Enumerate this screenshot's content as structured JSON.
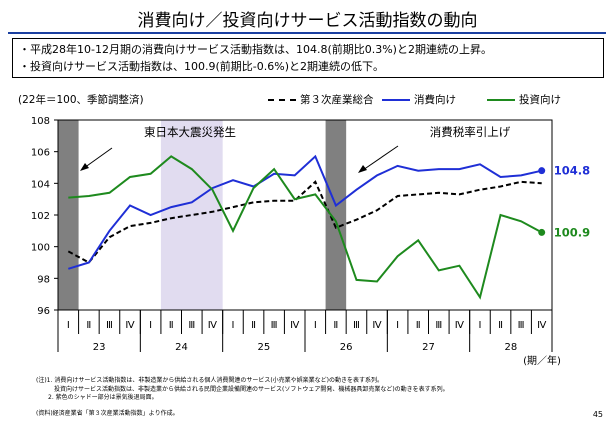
{
  "title": "消費向け／投資向けサービス活動指数の動向",
  "summary": [
    "・平成28年10-12月期の消費向けサービス活動指数は、104.8(前期比0.3%)と2期連続の上昇。",
    "・投資向けサービス活動指数は、100.9(前期比-0.6%)と2期連続の低下。"
  ],
  "units_label": "(22年＝100、季節調整済)",
  "annotations": {
    "quake": "東日本大震災発生",
    "tax": "消費税率引上げ"
  },
  "notes": [
    "(注)1. 消費向けサービス活動指数は、非製造業から供給される個人消費関連のサービス(小売業や娯楽業など)の動きを表す系列。",
    "　　　投資向けサービス活動指数は、非製造業から供給される民間企業設備関連のサービス(ソフトウェア開発、機械器具卸売業など)の動きを表す系列。",
    "　　2. 紫色のシャドー部分は景気後退局面。"
  ],
  "source": "(資料)経済産業省「第３次産業活動指数」より作成。",
  "page_number": "45",
  "colors": {
    "consumer": "#1f2fd6",
    "investment": "#1e8a1e",
    "tertiary": "#000000",
    "event_shade": "#808080",
    "recession_shade": "#e1dcf0"
  },
  "chart_data": {
    "type": "line",
    "ylim": [
      96,
      108
    ],
    "yticks": [
      96,
      98,
      100,
      102,
      104,
      106,
      108
    ],
    "x_unit_label": "(期／年)",
    "quarter_labels": [
      "Ⅰ",
      "Ⅱ",
      "Ⅲ",
      "Ⅳ",
      "Ⅰ",
      "Ⅱ",
      "Ⅲ",
      "Ⅳ",
      "Ⅰ",
      "Ⅱ",
      "Ⅲ",
      "Ⅳ",
      "Ⅰ",
      "Ⅱ",
      "Ⅲ",
      "Ⅳ",
      "Ⅰ",
      "Ⅱ",
      "Ⅲ",
      "Ⅳ",
      "Ⅰ",
      "Ⅱ",
      "Ⅲ",
      "Ⅳ"
    ],
    "year_labels": [
      {
        "label": "23",
        "start": 0,
        "end": 4
      },
      {
        "label": "24",
        "start": 4,
        "end": 8
      },
      {
        "label": "25",
        "start": 8,
        "end": 12
      },
      {
        "label": "26",
        "start": 12,
        "end": 16
      },
      {
        "label": "27",
        "start": 16,
        "end": 20
      },
      {
        "label": "28",
        "start": 20,
        "end": 24
      }
    ],
    "series": [
      {
        "name": "第３次産業総合",
        "key": "tertiary",
        "dash": true,
        "values": [
          99.7,
          99.0,
          100.6,
          101.3,
          101.5,
          101.8,
          102.0,
          102.2,
          102.5,
          102.8,
          102.9,
          102.9,
          104.1,
          101.2,
          101.7,
          102.3,
          103.2,
          103.3,
          103.4,
          103.3,
          103.6,
          103.8,
          104.1,
          104.0
        ]
      },
      {
        "name": "消費向け",
        "key": "consumer",
        "dash": false,
        "values": [
          98.6,
          99.0,
          101.0,
          102.6,
          102.0,
          102.5,
          102.8,
          103.7,
          104.2,
          103.8,
          104.6,
          104.5,
          105.7,
          102.6,
          103.6,
          104.5,
          105.1,
          104.8,
          104.9,
          104.9,
          105.2,
          104.4,
          104.5,
          104.8
        ]
      },
      {
        "name": "投資向け",
        "key": "investment",
        "dash": false,
        "values": [
          103.1,
          103.2,
          103.4,
          104.4,
          104.6,
          105.7,
          104.9,
          103.6,
          101.0,
          103.7,
          104.9,
          103.0,
          103.3,
          101.6,
          97.9,
          97.8,
          99.4,
          100.4,
          98.5,
          98.8,
          96.8,
          102.0,
          101.6,
          100.9
        ]
      }
    ],
    "end_labels": [
      {
        "key": "consumer",
        "text": "104.8"
      },
      {
        "key": "investment",
        "text": "100.9"
      }
    ],
    "shades": [
      {
        "kind": "event",
        "from": 0,
        "to": 1
      },
      {
        "kind": "recession",
        "from": 5,
        "to": 8
      },
      {
        "kind": "event",
        "from": 13,
        "to": 14
      }
    ]
  }
}
